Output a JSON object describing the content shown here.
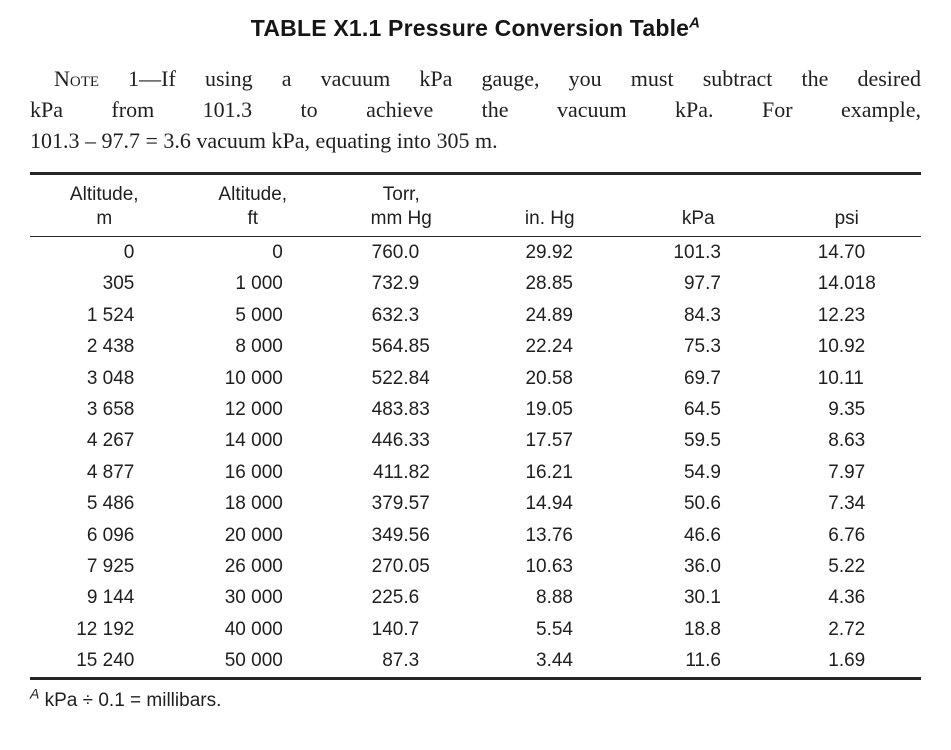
{
  "title": {
    "text": "TABLE X1.1 Pressure Conversion Table",
    "superscript": "A"
  },
  "note": {
    "label": "Note",
    "number": "1",
    "line1": "—If using a vacuum kPa gauge, you must subtract the desired",
    "line2": "kPa from 101.3 to achieve the vacuum kPa. For example,",
    "line3": "101.3 – 97.7 = 3.6 vacuum kPa, equating into 305 m."
  },
  "table": {
    "columns": [
      {
        "header_line1": "Altitude,",
        "header_line2": "m"
      },
      {
        "header_line1": "Altitude,",
        "header_line2": "ft"
      },
      {
        "header_line1": "Torr,",
        "header_line2": "mm Hg"
      },
      {
        "header_line1": "",
        "header_line2": "in. Hg"
      },
      {
        "header_line1": "",
        "header_line2": "kPa"
      },
      {
        "header_line1": "",
        "header_line2": "psi"
      }
    ],
    "rows": [
      [
        "0",
        "0",
        "760.0",
        "29.92",
        "101.3",
        "14.70"
      ],
      [
        "305",
        "1 000",
        "732.9",
        "28.85",
        "97.7",
        "14.018"
      ],
      [
        "1 524",
        "5 000",
        "632.3",
        "24.89",
        "84.3",
        "12.23"
      ],
      [
        "2 438",
        "8 000",
        "564.85",
        "22.24",
        "75.3",
        "10.92"
      ],
      [
        "3 048",
        "10 000",
        "522.84",
        "20.58",
        "69.7",
        "10.11"
      ],
      [
        "3 658",
        "12 000",
        "483.83",
        "19.05",
        "64.5",
        "9.35"
      ],
      [
        "4 267",
        "14 000",
        "446.33",
        "17.57",
        "59.5",
        "8.63"
      ],
      [
        "4 877",
        "16 000",
        "411.82",
        "16.21",
        "54.9",
        "7.97"
      ],
      [
        "5 486",
        "18 000",
        "379.57",
        "14.94",
        "50.6",
        "7.34"
      ],
      [
        "6 096",
        "20 000",
        "349.56",
        "13.76",
        "46.6",
        "6.76"
      ],
      [
        "7 925",
        "26 000",
        "270.05",
        "10.63",
        "36.0",
        "5.22"
      ],
      [
        "9 144",
        "30 000",
        "225.6",
        "8.88",
        "30.1",
        "4.36"
      ],
      [
        "12 192",
        "40 000",
        "140.7",
        "5.54",
        "18.8",
        "2.72"
      ],
      [
        "15 240",
        "50 000",
        "87.3",
        "3.44",
        "11.6",
        "1.69"
      ]
    ]
  },
  "footnote": {
    "marker": "A",
    "text": "kPa ÷ 0.1 = millibars."
  }
}
